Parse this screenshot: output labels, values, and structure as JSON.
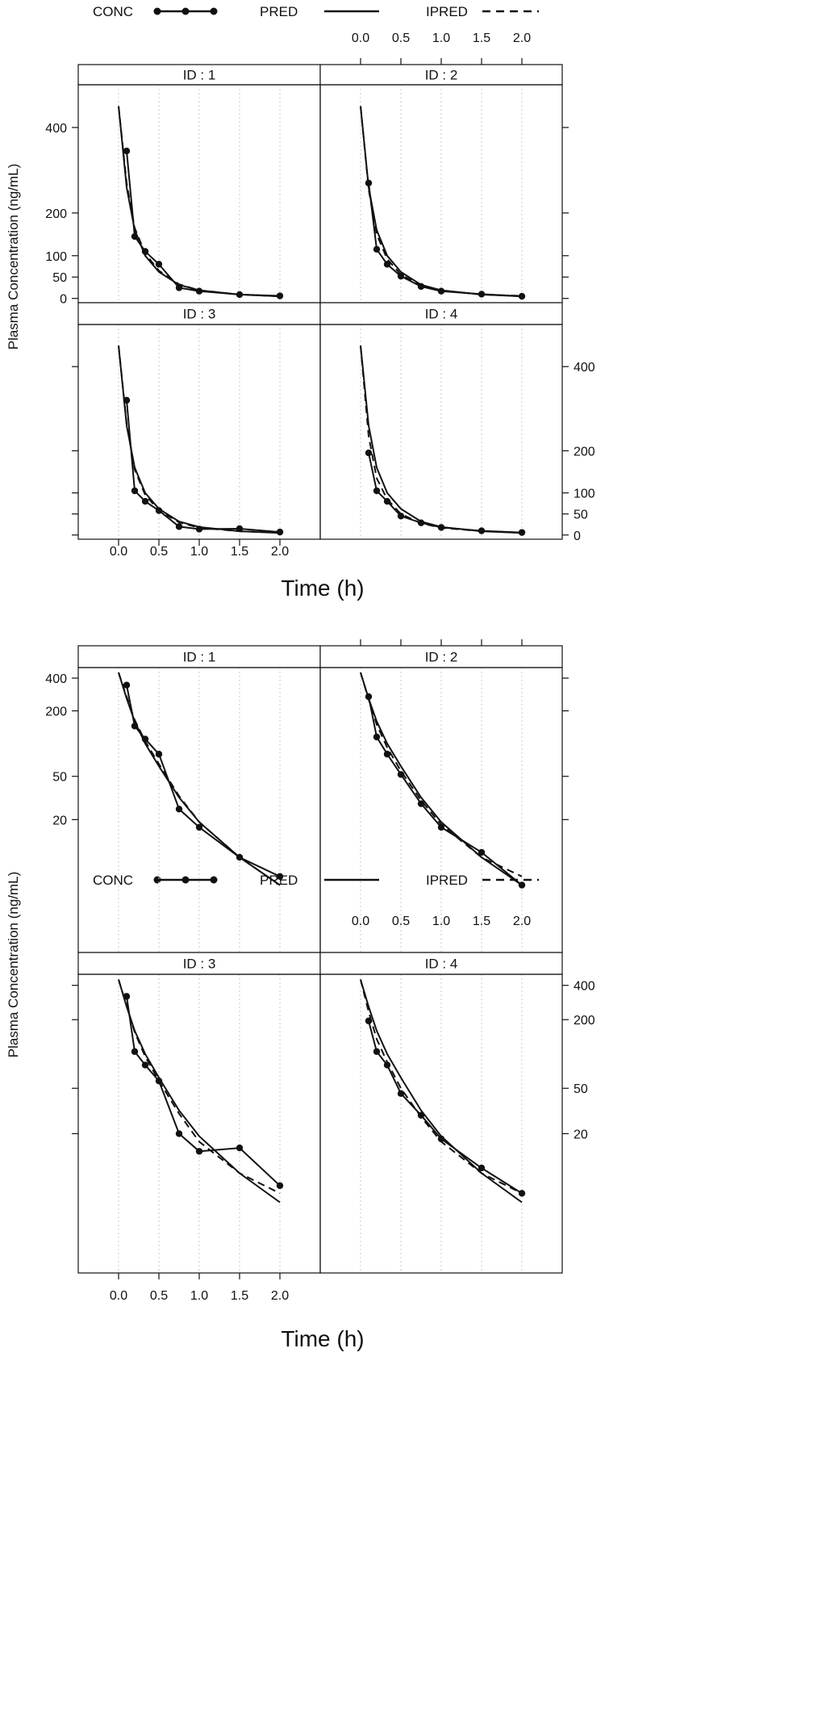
{
  "legend": {
    "items": [
      {
        "label": "CONC",
        "style": "line-with-points"
      },
      {
        "label": "PRED",
        "style": "solid-line"
      },
      {
        "label": "IPRED",
        "style": "dashed-line"
      }
    ]
  },
  "chart_data": [
    {
      "type": "line",
      "scale": "linear",
      "xlabel": "Time (h)",
      "ylabel": "Plasma Concentration (ng/mL)",
      "xlim": [
        -0.5,
        2.5
      ],
      "ylim": [
        -10,
        500
      ],
      "xticks": [
        "0.0",
        "0.5",
        "1.0",
        "1.5",
        "2.0"
      ],
      "yticks": [
        "0",
        "50",
        "100",
        "200",
        "400"
      ],
      "panels": [
        {
          "label": "ID : 1",
          "series": [
            {
              "name": "CONC",
              "x": [
                0.1,
                0.2,
                0.33,
                0.5,
                0.75,
                1.0,
                1.5,
                2.0
              ],
              "y": [
                345,
                145,
                110,
                80,
                25,
                17,
                9,
                6
              ]
            },
            {
              "name": "PRED",
              "x": [
                0.0,
                0.1,
                0.2,
                0.33,
                0.5,
                0.75,
                1.0,
                1.5,
                2.0
              ],
              "y": [
                450,
                260,
                160,
                100,
                62,
                32,
                19,
                9,
                5
              ]
            },
            {
              "name": "IPRED",
              "x": [
                0.0,
                0.1,
                0.2,
                0.33,
                0.5,
                0.75,
                1.0,
                1.5,
                2.0
              ],
              "y": [
                450,
                270,
                165,
                105,
                65,
                33,
                19,
                9,
                5
              ]
            }
          ]
        },
        {
          "label": "ID : 2",
          "series": [
            {
              "name": "CONC",
              "x": [
                0.1,
                0.2,
                0.33,
                0.5,
                0.75,
                1.0,
                1.5,
                2.0
              ],
              "y": [
                270,
                115,
                80,
                52,
                28,
                17,
                10,
                5
              ]
            },
            {
              "name": "PRED",
              "x": [
                0.0,
                0.1,
                0.2,
                0.33,
                0.5,
                0.75,
                1.0,
                1.5,
                2.0
              ],
              "y": [
                450,
                260,
                160,
                100,
                62,
                32,
                19,
                9,
                5
              ]
            },
            {
              "name": "IPRED",
              "x": [
                0.0,
                0.1,
                0.2,
                0.33,
                0.5,
                0.75,
                1.0,
                1.5,
                2.0
              ],
              "y": [
                450,
                255,
                150,
                92,
                56,
                30,
                18,
                9,
                6
              ]
            }
          ]
        },
        {
          "label": "ID : 3",
          "series": [
            {
              "name": "CONC",
              "x": [
                0.1,
                0.2,
                0.33,
                0.5,
                0.75,
                1.0,
                1.5,
                2.0
              ],
              "y": [
                320,
                105,
                80,
                58,
                20,
                14,
                15,
                7
              ]
            },
            {
              "name": "PRED",
              "x": [
                0.0,
                0.1,
                0.2,
                0.33,
                0.5,
                0.75,
                1.0,
                1.5,
                2.0
              ],
              "y": [
                450,
                260,
                160,
                100,
                62,
                32,
                19,
                9,
                5
              ]
            },
            {
              "name": "IPRED",
              "x": [
                0.0,
                0.1,
                0.2,
                0.33,
                0.5,
                0.75,
                1.0,
                1.5,
                2.0
              ],
              "y": [
                450,
                265,
                155,
                95,
                58,
                30,
                17,
                9,
                6
              ]
            }
          ]
        },
        {
          "label": "ID : 4",
          "series": [
            {
              "name": "CONC",
              "x": [
                0.1,
                0.2,
                0.33,
                0.5,
                0.75,
                1.0,
                1.5,
                2.0
              ],
              "y": [
                195,
                105,
                80,
                45,
                29,
                18,
                10,
                6
              ]
            },
            {
              "name": "PRED",
              "x": [
                0.0,
                0.1,
                0.2,
                0.33,
                0.5,
                0.75,
                1.0,
                1.5,
                2.0
              ],
              "y": [
                450,
                260,
                160,
                100,
                62,
                32,
                19,
                9,
                5
              ]
            },
            {
              "name": "IPRED",
              "x": [
                0.0,
                0.1,
                0.2,
                0.33,
                0.5,
                0.75,
                1.0,
                1.5,
                2.0
              ],
              "y": [
                450,
                235,
                135,
                85,
                50,
                28,
                17,
                9,
                6
              ]
            }
          ]
        }
      ]
    },
    {
      "type": "line",
      "scale": "log",
      "xlabel": "Time (h)",
      "ylabel": "Plasma Concentration (ng/mL)",
      "xlim": [
        -0.5,
        2.5
      ],
      "ylim": [
        1.2,
        500
      ],
      "xticks": [
        "0.0",
        "0.5",
        "1.0",
        "1.5",
        "2.0"
      ],
      "yticks": [
        "20",
        "50",
        "200",
        "400"
      ],
      "panels": [
        {
          "label": "ID : 1",
          "series": [
            {
              "name": "CONC",
              "x": [
                0.1,
                0.2,
                0.33,
                0.5,
                0.75,
                1.0,
                1.5,
                2.0
              ],
              "y": [
                345,
                145,
                110,
                80,
                25,
                17,
                9,
                6
              ]
            },
            {
              "name": "PRED",
              "x": [
                0.0,
                0.1,
                0.2,
                0.33,
                0.5,
                0.75,
                1.0,
                1.5,
                2.0
              ],
              "y": [
                450,
                260,
                160,
                100,
                62,
                32,
                19,
                9,
                5
              ]
            },
            {
              "name": "IPRED",
              "x": [
                0.0,
                0.1,
                0.2,
                0.33,
                0.5,
                0.75,
                1.0,
                1.5,
                2.0
              ],
              "y": [
                450,
                270,
                165,
                105,
                65,
                33,
                19,
                9,
                5
              ]
            }
          ]
        },
        {
          "label": "ID : 2",
          "series": [
            {
              "name": "CONC",
              "x": [
                0.1,
                0.2,
                0.33,
                0.5,
                0.75,
                1.0,
                1.5,
                2.0
              ],
              "y": [
                270,
                115,
                80,
                52,
                28,
                17,
                10,
                5
              ]
            },
            {
              "name": "PRED",
              "x": [
                0.0,
                0.1,
                0.2,
                0.33,
                0.5,
                0.75,
                1.0,
                1.5,
                2.0
              ],
              "y": [
                450,
                260,
                160,
                100,
                62,
                32,
                19,
                9,
                5
              ]
            },
            {
              "name": "IPRED",
              "x": [
                0.0,
                0.1,
                0.2,
                0.33,
                0.5,
                0.75,
                1.0,
                1.5,
                2.0
              ],
              "y": [
                450,
                255,
                150,
                92,
                56,
                30,
                18,
                9,
                6
              ]
            }
          ]
        },
        {
          "label": "ID : 3",
          "series": [
            {
              "name": "CONC",
              "x": [
                0.1,
                0.2,
                0.33,
                0.5,
                0.75,
                1.0,
                1.5,
                2.0
              ],
              "y": [
                320,
                105,
                80,
                58,
                20,
                14,
                15,
                7
              ]
            },
            {
              "name": "PRED",
              "x": [
                0.0,
                0.1,
                0.2,
                0.33,
                0.5,
                0.75,
                1.0,
                1.5,
                2.0
              ],
              "y": [
                450,
                260,
                160,
                100,
                62,
                32,
                19,
                9,
                5
              ]
            },
            {
              "name": "IPRED",
              "x": [
                0.0,
                0.1,
                0.2,
                0.33,
                0.5,
                0.75,
                1.0,
                1.5,
                2.0
              ],
              "y": [
                450,
                265,
                155,
                95,
                58,
                30,
                17,
                9,
                6
              ]
            }
          ]
        },
        {
          "label": "ID : 4",
          "series": [
            {
              "name": "CONC",
              "x": [
                0.1,
                0.2,
                0.33,
                0.5,
                0.75,
                1.0,
                1.5,
                2.0
              ],
              "y": [
                195,
                105,
                80,
                45,
                29,
                18,
                10,
                6
              ]
            },
            {
              "name": "PRED",
              "x": [
                0.0,
                0.1,
                0.2,
                0.33,
                0.5,
                0.75,
                1.0,
                1.5,
                2.0
              ],
              "y": [
                450,
                260,
                160,
                100,
                62,
                32,
                19,
                9,
                5
              ]
            },
            {
              "name": "IPRED",
              "x": [
                0.0,
                0.1,
                0.2,
                0.33,
                0.5,
                0.75,
                1.0,
                1.5,
                2.0
              ],
              "y": [
                450,
                235,
                135,
                85,
                50,
                28,
                17,
                9,
                6
              ]
            }
          ]
        }
      ]
    }
  ]
}
